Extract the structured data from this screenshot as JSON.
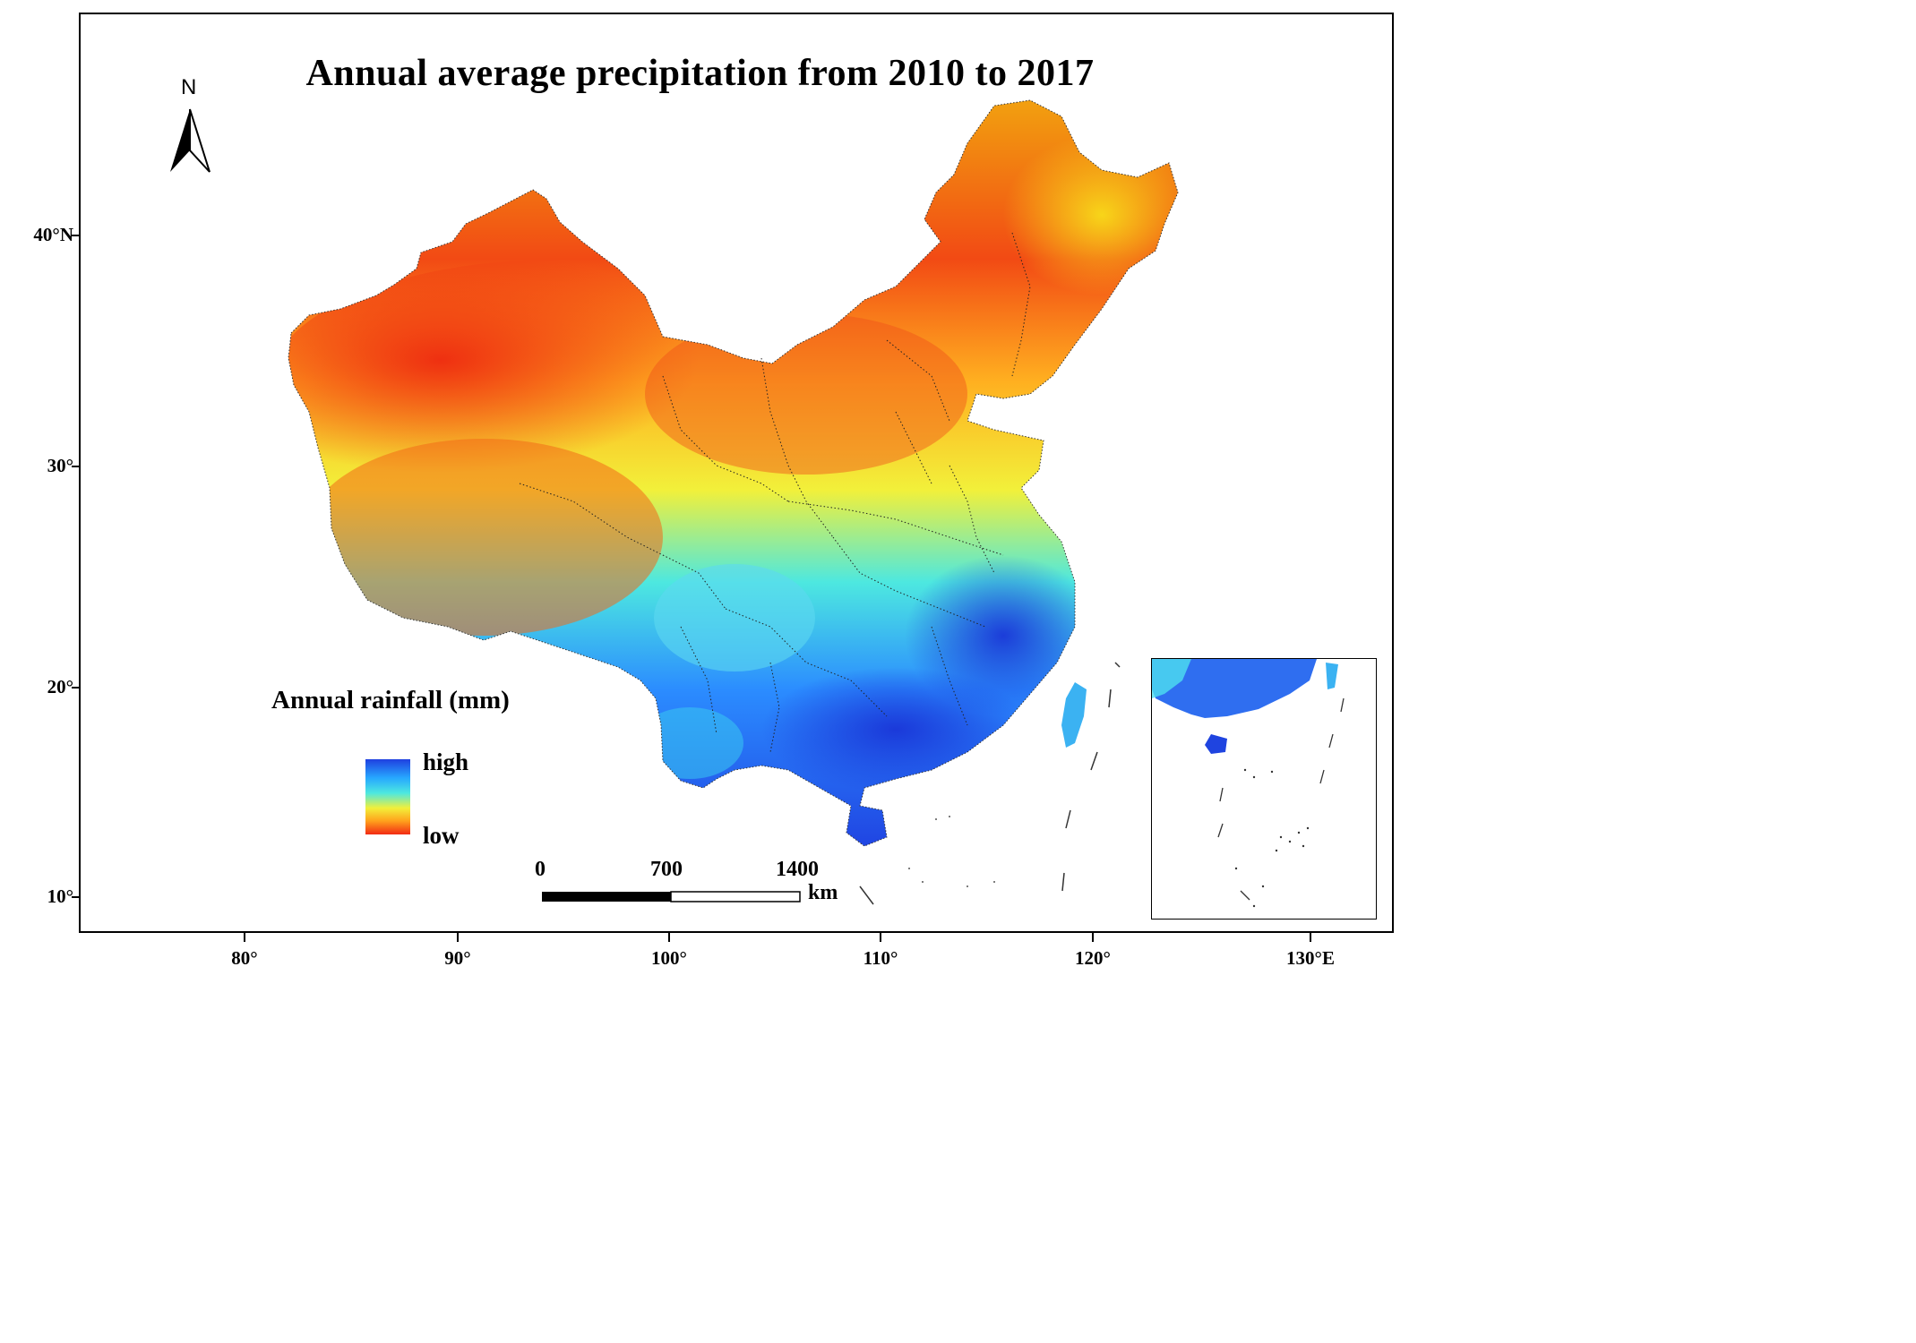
{
  "title": "Annual average  precipitation from 2010 to 2017",
  "north_arrow": {
    "label": "N"
  },
  "latitude_labels": [
    "40°N",
    "30°",
    "20°",
    "10°"
  ],
  "longitude_labels": [
    "80°",
    "90°",
    "100°",
    "110°",
    "120°",
    "130°E"
  ],
  "legend": {
    "title": "Annual rainfall (mm)",
    "high_label": "high",
    "low_label": "low",
    "colors": {
      "high": "#1f3fe0",
      "mid": "#4de8e0",
      "mid2": "#f2f03a",
      "low": "#f22a14"
    }
  },
  "scale_bar": {
    "labels": [
      "0",
      "700",
      "1400"
    ],
    "unit": "km"
  },
  "inset": {
    "description_visible": false
  }
}
